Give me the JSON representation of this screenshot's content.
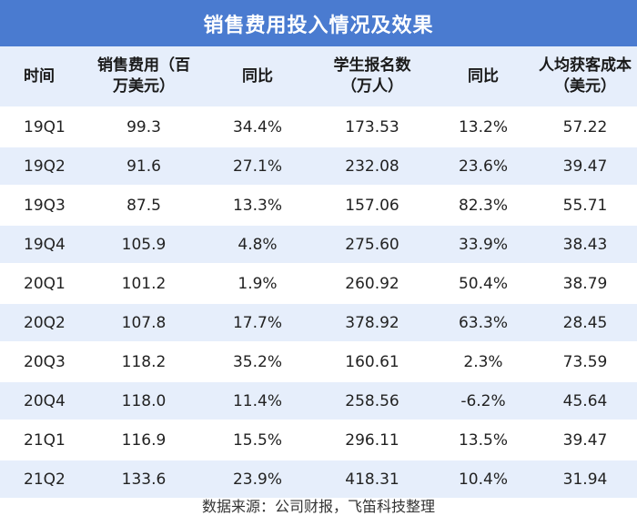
{
  "title": "销售费用投入情况及效果",
  "headers": [
    "时间",
    "销售费用（百万美元）",
    "同比",
    "学生报名数（万人）",
    "同比",
    "人均获客成本（美元）"
  ],
  "header_lines": [
    [
      "时间"
    ],
    [
      "销售费用（百",
      "万美元）"
    ],
    [
      "同比"
    ],
    [
      "学生报名数",
      "（万人）"
    ],
    [
      "同比"
    ],
    [
      "人均获客成本",
      "（美元）"
    ]
  ],
  "rows": [
    [
      "19Q1",
      "99.3",
      "34.4%",
      "173.53",
      "13.2%",
      "57.22"
    ],
    [
      "19Q2",
      "91.6",
      "27.1%",
      "232.08",
      "23.6%",
      "39.47"
    ],
    [
      "19Q3",
      "87.5",
      "13.3%",
      "157.06",
      "82.3%",
      "55.71"
    ],
    [
      "19Q4",
      "105.9",
      "4.8%",
      "275.60",
      "33.9%",
      "38.43"
    ],
    [
      "20Q1",
      "101.2",
      "1.9%",
      "260.92",
      "50.4%",
      "38.79"
    ],
    [
      "20Q2",
      "107.8",
      "17.7%",
      "378.92",
      "63.3%",
      "28.45"
    ],
    [
      "20Q3",
      "118.2",
      "35.2%",
      "160.61",
      "2.3%",
      "73.59"
    ],
    [
      "20Q4",
      "118.0",
      "11.4%",
      "258.56",
      "-6.2%",
      "45.64"
    ],
    [
      "21Q1",
      "116.9",
      "15.5%",
      "296.11",
      "13.5%",
      "39.47"
    ],
    [
      "21Q2",
      "133.6",
      "23.9%",
      "418.31",
      "10.4%",
      "31.94"
    ]
  ],
  "source": "数据来源：公司财报，飞笛科技整理",
  "colors": {
    "title_bg": "#4a7bd0",
    "stripe": "#e6eefb",
    "text": "#222222"
  }
}
